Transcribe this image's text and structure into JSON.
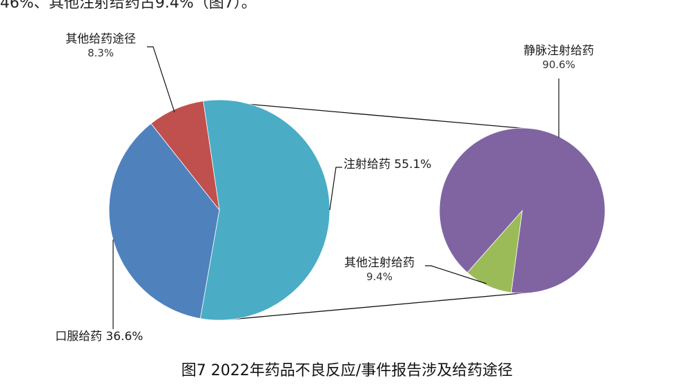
{
  "header_fragment": "46%、其他注射给药占9.4%（图7）。",
  "chart_data": {
    "type": "pie",
    "subtype": "pie-of-pie",
    "title": "图7 2022年药品不良反应/事件报告涉及给药途径",
    "main_pie": {
      "categories": [
        "注射给药",
        "口服给药",
        "其他给药途径"
      ],
      "values": [
        55.1,
        36.6,
        8.3
      ],
      "colors": [
        "#4BACC6",
        "#4F81BD",
        "#C0504D"
      ],
      "labels": [
        "注射给药 55.1%",
        "口服给药 36.6%",
        "其他给药途径 8.3%"
      ]
    },
    "secondary_pie": {
      "parent_category": "注射给药",
      "categories": [
        "静脉注射给药",
        "其他注射给药"
      ],
      "values": [
        90.6,
        9.4
      ],
      "colors": [
        "#8064A2",
        "#9BBB59"
      ],
      "labels": [
        "静脉注射给药 90.6%",
        "其他注射给药 9.4%"
      ]
    },
    "legend": "none (data labels with leader lines)"
  },
  "labels": {
    "other_route_name": "其他给药途径",
    "other_route_pct": "8.3%",
    "injection": "注射给药 55.1%",
    "oral": "口服给药 36.6%",
    "iv_name": "静脉注射给药",
    "iv_pct": "90.6%",
    "other_inj_name": "其他注射给药",
    "other_inj_pct": "9.4%"
  },
  "caption": "图7 2022年药品不良反应/事件报告涉及给药途径"
}
